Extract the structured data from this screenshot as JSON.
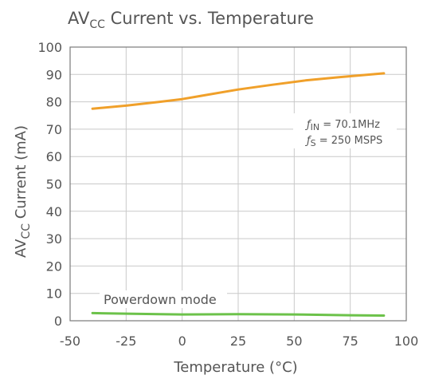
{
  "chart_data": {
    "type": "line",
    "title": {
      "main": "AV",
      "sub": "CC",
      "rest": " Current vs. Temperature"
    },
    "xlabel": "Temperature (°C)",
    "ylabel": {
      "main": "AV",
      "sub": "CC",
      "rest": " Current (mA)"
    },
    "xlim": [
      -50,
      100
    ],
    "ylim": [
      0,
      100
    ],
    "xticks": [
      -50,
      -25,
      0,
      25,
      50,
      75,
      100
    ],
    "yticks": [
      0,
      10,
      20,
      30,
      40,
      50,
      60,
      70,
      80,
      90,
      100
    ],
    "grid": true,
    "series": [
      {
        "color": "#f0a02a",
        "x": [
          -40,
          -25,
          -10,
          0,
          10,
          25,
          40,
          55,
          70,
          90
        ],
        "y": [
          77.5,
          78.6,
          80.0,
          81.0,
          82.4,
          84.5,
          86.2,
          87.8,
          89.0,
          90.4
        ]
      },
      {
        "color": "#6cc24a",
        "x": [
          -40,
          -25,
          -10,
          0,
          25,
          50,
          75,
          90
        ],
        "y": [
          2.8,
          2.6,
          2.4,
          2.3,
          2.4,
          2.3,
          2.0,
          1.9
        ]
      }
    ],
    "annotations": {
      "fin": {
        "symbol": "ƒ",
        "sub": "IN",
        "value": " = 70.1MHz"
      },
      "fs": {
        "symbol": "ƒ",
        "sub": "S",
        "value": " = 250 MSPS"
      },
      "powerdown": "Powerdown mode"
    }
  }
}
